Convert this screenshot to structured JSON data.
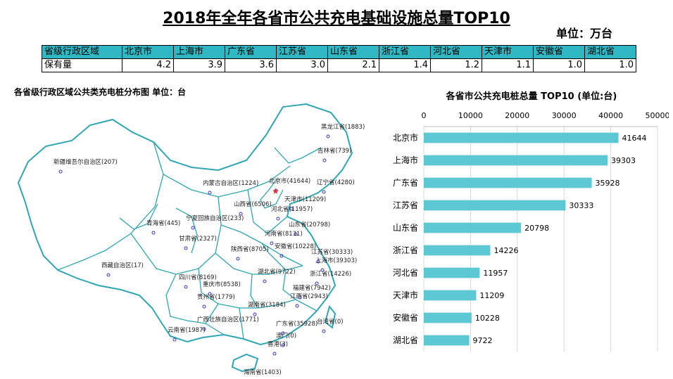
{
  "header": {
    "title": "2018年全年各省市公共充电基础设施总量TOP10",
    "unit": "单位：万台"
  },
  "stock_table": {
    "row_label_header": "省级行政区域",
    "row_label_value": "保有量",
    "columns": [
      {
        "name": "北京市",
        "value": "4.2"
      },
      {
        "name": "上海市",
        "value": "3.9"
      },
      {
        "name": "广东省",
        "value": "3.6"
      },
      {
        "name": "江苏省",
        "value": "3.0"
      },
      {
        "name": "山东省",
        "value": "2.1"
      },
      {
        "name": "浙江省",
        "value": "1.4"
      },
      {
        "name": "河北省",
        "value": "1.2"
      },
      {
        "name": "天津市",
        "value": "1.1"
      },
      {
        "name": "安徽省",
        "value": "1.0"
      },
      {
        "name": "湖北省",
        "value": "1.0"
      }
    ]
  },
  "map": {
    "title": "各省级行政区域公共类充电桩分布图  单位：台",
    "accent_color": "#2fa6b3",
    "labels": [
      "黑龙江省(1883)",
      "吉林省(739)",
      "辽宁省(4280)",
      "新疆维吾尔自治区(207)",
      "内蒙古自治区(1224)",
      "北京市(41644)",
      "天津市(11209)",
      "河北省(11957)",
      "山西省(6506)",
      "宁夏回族自治区(233)",
      "青海省(445)",
      "甘肃省(2327)",
      "山东省(20798)",
      "河南省(8131)",
      "陕西省(8705)",
      "安徽省(10228)",
      "江苏省(30333)",
      "上海市(39303)",
      "西藏自治区(17)",
      "湖北省(9722)",
      "浙江省(14226)",
      "四川省(8169)",
      "重庆市(8538)",
      "福建省(7942)",
      "贵州省(1779)",
      "湖南省(3184)",
      "江西省(2943)",
      "广西壮族自治区(1771)",
      "广东省(35928)",
      "台湾省(0)",
      "云南省(1987)",
      "澳门(0)",
      "香港(3)",
      "海南省(1403)"
    ]
  },
  "chart_data": {
    "type": "bar",
    "orientation": "horizontal",
    "title": "各省市公共充电桩总量 TOP10   (单位:台)",
    "categories": [
      "北京市",
      "上海市",
      "广东省",
      "江苏省",
      "山东省",
      "浙江省",
      "河北省",
      "天津市",
      "安徽省",
      "湖北省"
    ],
    "values": [
      41644,
      39303,
      35928,
      30333,
      20798,
      14226,
      11957,
      11209,
      10228,
      9722
    ],
    "xlim": [
      0,
      50000
    ],
    "x_ticks": [
      "0",
      "10000",
      "20000",
      "30000",
      "40000",
      "50000"
    ],
    "axis_position": "top",
    "grid": "vertical",
    "bar_color": "#5cc8d3",
    "data_labels": true
  }
}
